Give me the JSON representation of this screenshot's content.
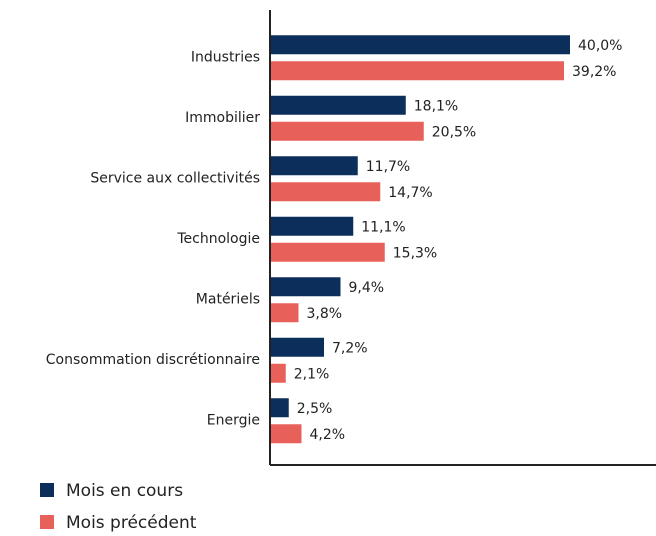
{
  "chart_data": {
    "type": "bar",
    "orientation": "horizontal",
    "categories": [
      "Industries",
      "Immobilier",
      "Service aux collectivités",
      "Technologie",
      "Matériels",
      "Consommation discrétionnaire",
      "Energie"
    ],
    "series": [
      {
        "name": "Mois en cours",
        "color": "#0b2f5a",
        "values": [
          40.0,
          18.1,
          11.7,
          11.1,
          9.4,
          7.2,
          2.5
        ],
        "value_labels": [
          "40,0%",
          "18,1%",
          "11,7%",
          "11,1%",
          "9,4%",
          "7,2%",
          "2,5%"
        ]
      },
      {
        "name": "Mois précédent",
        "color": "#e8605a",
        "values": [
          39.2,
          20.5,
          14.7,
          15.3,
          3.8,
          2.1,
          4.2
        ],
        "value_labels": [
          "39,2%",
          "20,5%",
          "14,7%",
          "15,3%",
          "3,8%",
          "2,1%",
          "4,2%"
        ]
      }
    ],
    "xlim": [
      0,
      50
    ]
  }
}
